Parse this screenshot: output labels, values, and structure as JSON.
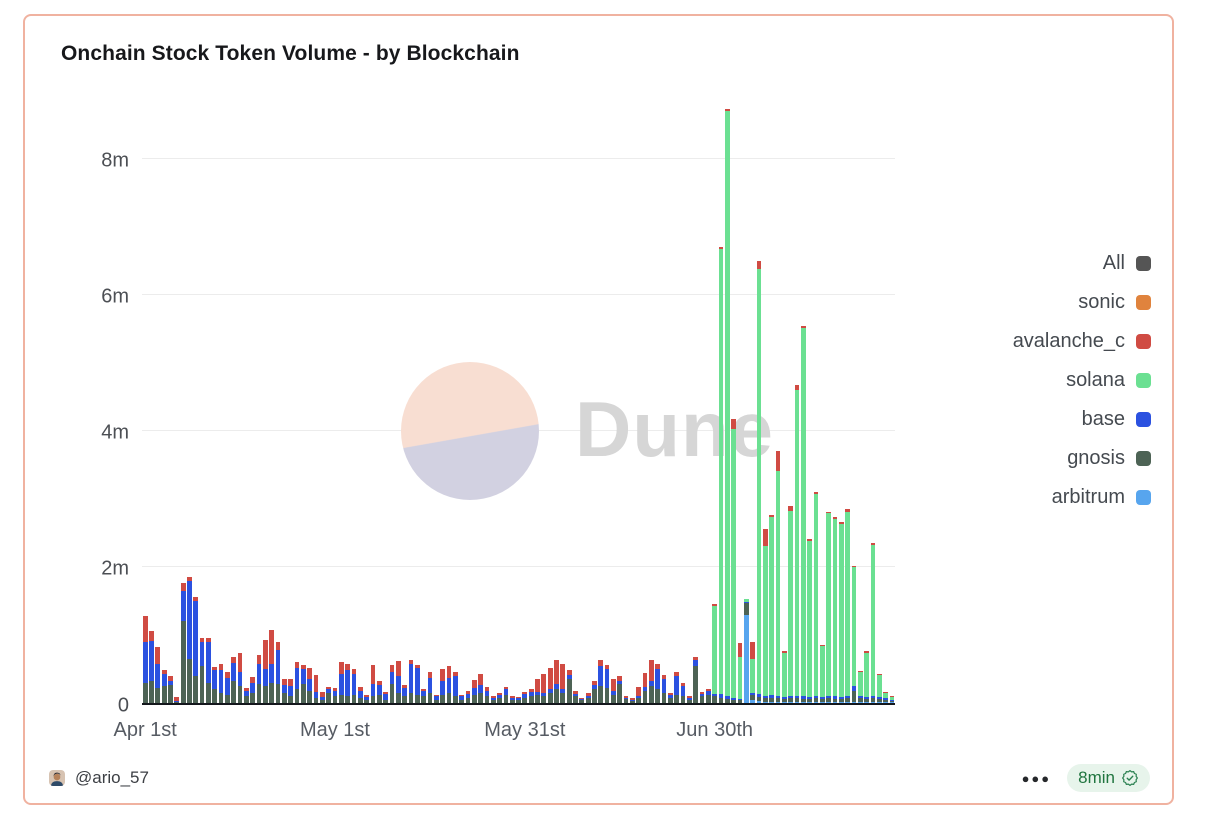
{
  "card": {
    "border_color": "#f0b2a0"
  },
  "header": {
    "title": "Onchain Stock Token Volume - by Blockchain"
  },
  "watermark": {
    "text": "Dune",
    "pie_top_color": "#f8ded2",
    "pie_bottom_color": "#d2d1e1",
    "text_color": "#d6d6d6"
  },
  "legend": {
    "items": [
      {
        "label": "All",
        "color": "#555555"
      },
      {
        "label": "sonic",
        "color": "#e0833d"
      },
      {
        "label": "avalanche_c",
        "color": "#d04b43"
      },
      {
        "label": "solana",
        "color": "#6be092"
      },
      {
        "label": "base",
        "color": "#2b51e0"
      },
      {
        "label": "gnosis",
        "color": "#4d6355"
      },
      {
        "label": "arbitrum",
        "color": "#57a5ee"
      }
    ]
  },
  "footer": {
    "author_handle": "@ario_57",
    "menu_label": "●●●",
    "refresh_badge": {
      "text": "8min",
      "icon": "verified-seal-icon",
      "bg_color": "#e7f4eb",
      "text_color": "#20753f"
    }
  },
  "chart_data": {
    "type": "bar",
    "stacked": true,
    "title": "Onchain Stock Token Volume - by Blockchain",
    "values_unit": "millions",
    "ylim_millions": [
      0,
      8.8
    ],
    "y_ticks": [
      {
        "label": "0",
        "value": 0
      },
      {
        "label": "2m",
        "value": 2
      },
      {
        "label": "4m",
        "value": 4
      },
      {
        "label": "6m",
        "value": 6
      },
      {
        "label": "8m",
        "value": 8
      }
    ],
    "x_ticks": [
      {
        "label": "Apr 1st",
        "index": 0
      },
      {
        "label": "May 1st",
        "index": 30
      },
      {
        "label": "May 31st",
        "index": 60
      },
      {
        "label": "Jun 30th",
        "index": 90
      }
    ],
    "grid": true,
    "legend_position": "right",
    "stack_order_bottom_to_top": [
      "arbitrum",
      "gnosis",
      "base",
      "solana",
      "avalanche_c",
      "sonic"
    ],
    "categories": [
      "Apr 1",
      "Apr 2",
      "Apr 3",
      "Apr 4",
      "Apr 5",
      "Apr 6",
      "Apr 7",
      "Apr 8",
      "Apr 9",
      "Apr 10",
      "Apr 11",
      "Apr 12",
      "Apr 13",
      "Apr 14",
      "Apr 15",
      "Apr 16",
      "Apr 17",
      "Apr 18",
      "Apr 19",
      "Apr 20",
      "Apr 21",
      "Apr 22",
      "Apr 23",
      "Apr 24",
      "Apr 25",
      "Apr 26",
      "Apr 27",
      "Apr 28",
      "Apr 29",
      "Apr 30",
      "May 1",
      "May 2",
      "May 3",
      "May 4",
      "May 5",
      "May 6",
      "May 7",
      "May 8",
      "May 9",
      "May 10",
      "May 11",
      "May 12",
      "May 13",
      "May 14",
      "May 15",
      "May 16",
      "May 17",
      "May 18",
      "May 19",
      "May 20",
      "May 21",
      "May 22",
      "May 23",
      "May 24",
      "May 25",
      "May 26",
      "May 27",
      "May 28",
      "May 29",
      "May 30",
      "May 31",
      "Jun 1",
      "Jun 2",
      "Jun 3",
      "Jun 4",
      "Jun 5",
      "Jun 6",
      "Jun 7",
      "Jun 8",
      "Jun 9",
      "Jun 10",
      "Jun 11",
      "Jun 12",
      "Jun 13",
      "Jun 14",
      "Jun 15",
      "Jun 16",
      "Jun 17",
      "Jun 18",
      "Jun 19",
      "Jun 20",
      "Jun 21",
      "Jun 22",
      "Jun 23",
      "Jun 24",
      "Jun 25",
      "Jun 26",
      "Jun 27",
      "Jun 28",
      "Jun 29",
      "Jun 30",
      "Jul 1",
      "Jul 2",
      "Jul 3",
      "Jul 4",
      "Jul 5",
      "Jul 6",
      "Jul 7",
      "Jul 8",
      "Jul 9",
      "Jul 10",
      "Jul 11",
      "Jul 12",
      "Jul 13",
      "Jul 14",
      "Jul 15",
      "Jul 16",
      "Jul 17",
      "Jul 18",
      "Jul 19",
      "Jul 20",
      "Jul 21",
      "Jul 22",
      "Jul 23",
      "Jul 24",
      "Jul 25",
      "Jul 26",
      "Jul 27",
      "Jul 28"
    ],
    "series": [
      {
        "name": "sonic",
        "color": "#e0833d",
        "values_millions": [
          0,
          0,
          0,
          0,
          0,
          0,
          0,
          0,
          0,
          0,
          0,
          0,
          0,
          0,
          0,
          0,
          0,
          0,
          0,
          0,
          0,
          0,
          0,
          0,
          0,
          0,
          0,
          0,
          0,
          0,
          0,
          0,
          0,
          0,
          0,
          0,
          0,
          0,
          0,
          0,
          0,
          0,
          0,
          0,
          0,
          0,
          0,
          0,
          0,
          0,
          0,
          0,
          0,
          0,
          0,
          0,
          0,
          0,
          0,
          0,
          0,
          0,
          0,
          0,
          0,
          0,
          0,
          0,
          0,
          0,
          0,
          0,
          0,
          0,
          0,
          0,
          0,
          0,
          0,
          0,
          0,
          0,
          0,
          0,
          0,
          0,
          0,
          0,
          0,
          0,
          0,
          0,
          0,
          0,
          0,
          0,
          0,
          0,
          0,
          0,
          0,
          0,
          0,
          0,
          0,
          0,
          0,
          0,
          0,
          0,
          0,
          0,
          0,
          0,
          0,
          0,
          0,
          0,
          0
        ]
      },
      {
        "name": "avalanche_c",
        "color": "#d04b43",
        "values_millions": [
          0.38,
          0.15,
          0.25,
          0.05,
          0.08,
          0.05,
          0.12,
          0.06,
          0.06,
          0.05,
          0.05,
          0.05,
          0.1,
          0.08,
          0.08,
          0.28,
          0.05,
          0.08,
          0.12,
          0.42,
          0.5,
          0.12,
          0.08,
          0.1,
          0.08,
          0.06,
          0.15,
          0.25,
          0.08,
          0.03,
          0.04,
          0.18,
          0.1,
          0.08,
          0.05,
          0.03,
          0.28,
          0.06,
          0.04,
          0.1,
          0.22,
          0.05,
          0.06,
          0.04,
          0.03,
          0.08,
          0.02,
          0.18,
          0.18,
          0.05,
          0.02,
          0.05,
          0.12,
          0.15,
          0.05,
          0.02,
          0.03,
          0.04,
          0.02,
          0.02,
          0.03,
          0.04,
          0.2,
          0.28,
          0.3,
          0.35,
          0.38,
          0.08,
          0.05,
          0.02,
          0.04,
          0.06,
          0.08,
          0.06,
          0.18,
          0.08,
          0.03,
          0.02,
          0.12,
          0.2,
          0.3,
          0.08,
          0.06,
          0.03,
          0.05,
          0.04,
          0.02,
          0.05,
          0.03,
          0.04,
          0.03,
          0.02,
          0.02,
          0.15,
          0.2,
          0.0,
          0.25,
          0.12,
          0.25,
          0.03,
          0.3,
          0.03,
          0.07,
          0.06,
          0.03,
          0.02,
          0.03,
          0.02,
          0.02,
          0.03,
          0.02,
          0.05,
          0.02,
          0.02,
          0.02,
          0.02,
          0.02,
          0.01,
          0.01
        ]
      },
      {
        "name": "solana",
        "color": "#6be092",
        "values_millions": [
          0,
          0,
          0,
          0,
          0,
          0,
          0,
          0,
          0,
          0,
          0,
          0,
          0,
          0,
          0,
          0,
          0,
          0,
          0,
          0,
          0,
          0,
          0,
          0,
          0,
          0,
          0,
          0,
          0,
          0,
          0,
          0,
          0,
          0,
          0,
          0,
          0,
          0,
          0,
          0,
          0,
          0,
          0,
          0,
          0,
          0,
          0,
          0,
          0,
          0,
          0,
          0,
          0,
          0,
          0,
          0,
          0,
          0,
          0,
          0,
          0,
          0,
          0,
          0,
          0,
          0,
          0,
          0,
          0,
          0,
          0,
          0,
          0,
          0,
          0,
          0,
          0,
          0,
          0,
          0,
          0,
          0,
          0,
          0,
          0,
          0,
          0,
          0,
          0,
          0,
          1.3,
          6.55,
          8.6,
          3.95,
          0.62,
          0.04,
          0.5,
          6.25,
          2.2,
          2.62,
          3.3,
          0.65,
          2.72,
          4.5,
          5.42,
          2.3,
          2.97,
          0.75,
          2.68,
          2.6,
          2.55,
          2.7,
          1.75,
          0.35,
          0.65,
          2.22,
          0.32,
          0.08,
          0.04
        ]
      },
      {
        "name": "base",
        "color": "#2b51e0",
        "values_millions": [
          0.6,
          0.58,
          0.36,
          0.18,
          0.05,
          0.01,
          0.45,
          1.15,
          1.1,
          0.35,
          0.6,
          0.28,
          0.33,
          0.25,
          0.27,
          0.2,
          0.07,
          0.15,
          0.3,
          0.25,
          0.28,
          0.5,
          0.12,
          0.15,
          0.32,
          0.22,
          0.18,
          0.08,
          0.04,
          0.05,
          0.08,
          0.3,
          0.38,
          0.3,
          0.1,
          0.04,
          0.18,
          0.15,
          0.08,
          0.18,
          0.25,
          0.12,
          0.42,
          0.4,
          0.08,
          0.22,
          0.05,
          0.2,
          0.22,
          0.3,
          0.05,
          0.05,
          0.1,
          0.12,
          0.08,
          0.03,
          0.04,
          0.08,
          0.03,
          0.03,
          0.05,
          0.06,
          0.04,
          0.05,
          0.06,
          0.08,
          0.05,
          0.06,
          0.03,
          0.02,
          0.03,
          0.06,
          0.3,
          0.28,
          0.05,
          0.04,
          0.02,
          0.02,
          0.03,
          0.06,
          0.08,
          0.3,
          0.2,
          0.04,
          0.28,
          0.15,
          0.03,
          0.08,
          0.04,
          0.05,
          0.03,
          0.05,
          0.05,
          0.03,
          0.02,
          0.02,
          0.03,
          0.04,
          0.04,
          0.04,
          0.04,
          0.03,
          0.04,
          0.04,
          0.04,
          0.03,
          0.04,
          0.03,
          0.04,
          0.04,
          0.03,
          0.04,
          0.08,
          0.03,
          0.03,
          0.04,
          0.03,
          0.02,
          0.01
        ]
      },
      {
        "name": "gnosis",
        "color": "#4d6355",
        "values_millions": [
          0.3,
          0.33,
          0.22,
          0.25,
          0.27,
          0.02,
          1.2,
          0.65,
          0.4,
          0.55,
          0.3,
          0.2,
          0.15,
          0.12,
          0.32,
          0.25,
          0.1,
          0.15,
          0.28,
          0.25,
          0.3,
          0.28,
          0.15,
          0.1,
          0.2,
          0.28,
          0.18,
          0.08,
          0.05,
          0.15,
          0.1,
          0.12,
          0.1,
          0.12,
          0.08,
          0.05,
          0.1,
          0.12,
          0.05,
          0.28,
          0.15,
          0.1,
          0.15,
          0.12,
          0.1,
          0.15,
          0.05,
          0.12,
          0.15,
          0.1,
          0.05,
          0.08,
          0.12,
          0.15,
          0.1,
          0.05,
          0.08,
          0.12,
          0.05,
          0.04,
          0.08,
          0.1,
          0.12,
          0.1,
          0.15,
          0.2,
          0.15,
          0.35,
          0.1,
          0.04,
          0.08,
          0.2,
          0.25,
          0.22,
          0.12,
          0.28,
          0.06,
          0.03,
          0.08,
          0.18,
          0.25,
          0.2,
          0.15,
          0.08,
          0.12,
          0.1,
          0.05,
          0.55,
          0.1,
          0.12,
          0.1,
          0.08,
          0.06,
          0.05,
          0.04,
          0.17,
          0.08,
          0.06,
          0.05,
          0.06,
          0.05,
          0.04,
          0.05,
          0.05,
          0.04,
          0.04,
          0.05,
          0.04,
          0.05,
          0.04,
          0.04,
          0.05,
          0.15,
          0.05,
          0.04,
          0.05,
          0.04,
          0.03,
          0.02
        ]
      },
      {
        "name": "arbitrum",
        "color": "#57a5ee",
        "values_millions": [
          0,
          0,
          0,
          0,
          0,
          0,
          0,
          0,
          0,
          0,
          0,
          0,
          0,
          0,
          0,
          0,
          0,
          0,
          0,
          0,
          0,
          0,
          0,
          0,
          0,
          0,
          0,
          0,
          0,
          0,
          0,
          0,
          0,
          0,
          0,
          0,
          0,
          0,
          0,
          0,
          0,
          0,
          0,
          0,
          0,
          0,
          0,
          0,
          0,
          0,
          0,
          0,
          0,
          0,
          0,
          0,
          0,
          0,
          0,
          0,
          0,
          0,
          0,
          0,
          0,
          0,
          0,
          0,
          0,
          0,
          0,
          0,
          0,
          0,
          0,
          0,
          0,
          0,
          0,
          0,
          0,
          0,
          0,
          0,
          0,
          0,
          0,
          0,
          0,
          0,
          0,
          0,
          0,
          0,
          0,
          1.3,
          0.04,
          0.03,
          0.02,
          0.02,
          0.02,
          0.02,
          0.02,
          0.02,
          0.02,
          0.02,
          0.02,
          0.02,
          0.02,
          0.02,
          0.02,
          0.02,
          0.02,
          0.02,
          0.02,
          0.02,
          0.02,
          0.02,
          0.01,
          0.01
        ]
      }
    ]
  }
}
